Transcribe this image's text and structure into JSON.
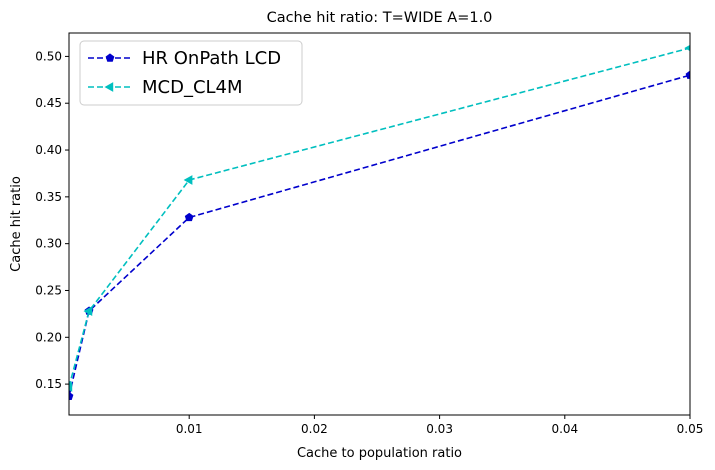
{
  "chart_data": {
    "type": "line",
    "title": "Cache hit ratio: T=WIDE A=1.0",
    "xlabel": "Cache to population ratio",
    "ylabel": "Cache hit ratio",
    "xlim": [
      0.0004,
      0.05
    ],
    "ylim": [
      0.117,
      0.525
    ],
    "xticks": [
      0.01,
      0.02,
      0.03,
      0.04,
      0.05
    ],
    "xtick_labels": [
      "0.01",
      "0.02",
      "0.03",
      "0.04",
      "0.05"
    ],
    "yticks": [
      0.15,
      0.2,
      0.25,
      0.3,
      0.35,
      0.4,
      0.45,
      0.5
    ],
    "ytick_labels": [
      "0.15",
      "0.20",
      "0.25",
      "0.30",
      "0.35",
      "0.40",
      "0.45",
      "0.50"
    ],
    "grid": false,
    "legend_position": "top-left",
    "x": [
      0.0004,
      0.002,
      0.01,
      0.05
    ],
    "series": [
      {
        "name": "HR OnPath LCD",
        "color": "#0000cc",
        "marker": "pentagon",
        "linestyle": "dashed",
        "values": [
          0.137,
          0.228,
          0.328,
          0.48
        ]
      },
      {
        "name": "MCD_CL4M",
        "color": "#00bfbf",
        "marker": "triangle-left",
        "linestyle": "dashed",
        "values": [
          0.147,
          0.228,
          0.368,
          0.509
        ]
      }
    ]
  }
}
